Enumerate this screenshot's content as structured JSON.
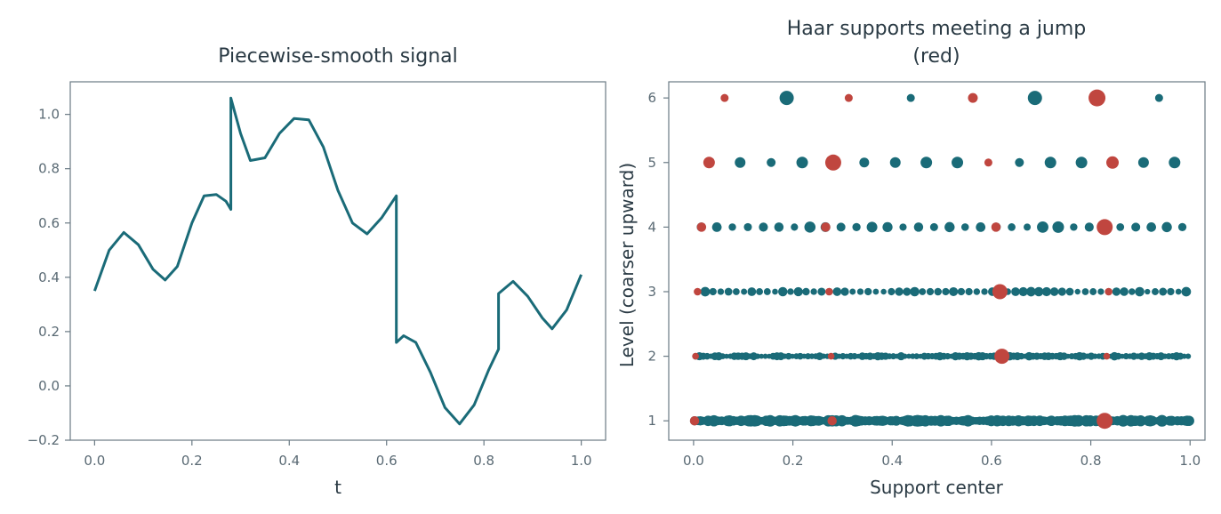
{
  "colors": {
    "teal": "#1a6b78",
    "red": "#c0463f",
    "text": "#2a3a44",
    "tick": "#5a6a74",
    "axis": "#6a7a84"
  },
  "chart_data": [
    {
      "type": "line",
      "title": "Piecewise-smooth signal",
      "xlabel": "t",
      "ylabel": "",
      "xlim": [
        -0.05,
        1.05
      ],
      "ylim": [
        -0.2,
        1.12
      ],
      "xticks": [
        "0.0",
        "0.2",
        "0.4",
        "0.6",
        "0.8",
        "1.0"
      ],
      "yticks": [
        "−0.2",
        "0.0",
        "0.2",
        "0.4",
        "0.6",
        "0.8",
        "1.0"
      ],
      "series": [
        {
          "color": "#1a6b78",
          "x": [
            0.0,
            0.03,
            0.06,
            0.09,
            0.12,
            0.145,
            0.17,
            0.2,
            0.225,
            0.25,
            0.27,
            0.28,
            0.28,
            0.3,
            0.32,
            0.35,
            0.38,
            0.41,
            0.44,
            0.47,
            0.5,
            0.53,
            0.56,
            0.59,
            0.62,
            0.62,
            0.635,
            0.66,
            0.69,
            0.72,
            0.75,
            0.78,
            0.81,
            0.83,
            0.83,
            0.86,
            0.89,
            0.92,
            0.94,
            0.97,
            1.0
          ],
          "y": [
            0.35,
            0.5,
            0.565,
            0.52,
            0.43,
            0.39,
            0.44,
            0.6,
            0.7,
            0.705,
            0.68,
            0.65,
            1.06,
            0.93,
            0.83,
            0.84,
            0.93,
            0.985,
            0.98,
            0.88,
            0.72,
            0.6,
            0.56,
            0.62,
            0.7,
            0.16,
            0.185,
            0.16,
            0.05,
            -0.08,
            -0.14,
            -0.07,
            0.06,
            0.135,
            0.34,
            0.385,
            0.33,
            0.25,
            0.21,
            0.28,
            0.41
          ]
        }
      ]
    },
    {
      "type": "scatter",
      "title": "Haar supports meeting a jump\n(red)",
      "xlabel": "Support center",
      "ylabel": "Level (coarser upward)",
      "xlim": [
        -0.05,
        1.03
      ],
      "ylim": [
        0.7,
        6.25
      ],
      "xticks": [
        "0.0",
        "0.2",
        "0.4",
        "0.6",
        "0.8",
        "1.0"
      ],
      "yticks": [
        "1",
        "2",
        "3",
        "4",
        "5",
        "6"
      ],
      "jumps": [
        0.28,
        0.62,
        0.83
      ],
      "series": [
        {
          "level": 6,
          "x": [
            0.0625,
            0.1875,
            0.3125,
            0.4375,
            0.5625,
            0.6875,
            0.8125,
            0.9375
          ],
          "size": [
            4.5,
            8,
            4.5,
            4.5,
            5.5,
            8,
            9.5,
            4.5
          ],
          "jump": [
            1,
            0,
            1,
            0,
            1,
            0,
            1,
            0
          ]
        },
        {
          "level": 5,
          "x": [
            0.03125,
            0.09375,
            0.15625,
            0.21875,
            0.28125,
            0.34375,
            0.40625,
            0.46875,
            0.53125,
            0.59375,
            0.65625,
            0.71875,
            0.78125,
            0.84375,
            0.90625,
            0.96875
          ],
          "size": [
            6.5,
            6,
            5,
            6.5,
            9,
            5.5,
            6,
            6.5,
            6.5,
            4.5,
            5,
            6.5,
            6.5,
            7,
            6,
            6.5
          ],
          "jump": [
            1,
            0,
            0,
            0,
            1,
            0,
            0,
            0,
            0,
            1,
            0,
            0,
            0,
            1,
            0,
            0
          ]
        },
        {
          "level": 4,
          "size": 5.5,
          "big": [
            0.828
          ],
          "bigsize": 9,
          "red": [
            0.016,
            0.266,
            0.609,
            0.828
          ]
        },
        {
          "level": 3,
          "size": 4.5,
          "big": [
            0.617
          ],
          "bigsize": 8.5,
          "red": [
            0.008,
            0.273,
            0.836
          ]
        },
        {
          "level": 2,
          "size": 4,
          "big": [
            0.621
          ],
          "bigsize": 8.5,
          "red": [
            0.004,
            0.277,
            0.832
          ]
        },
        {
          "level": 1,
          "size": 5.5,
          "big": [
            0.828
          ],
          "bigsize": 9,
          "red": [
            0.002,
            0.279
          ]
        }
      ]
    }
  ]
}
